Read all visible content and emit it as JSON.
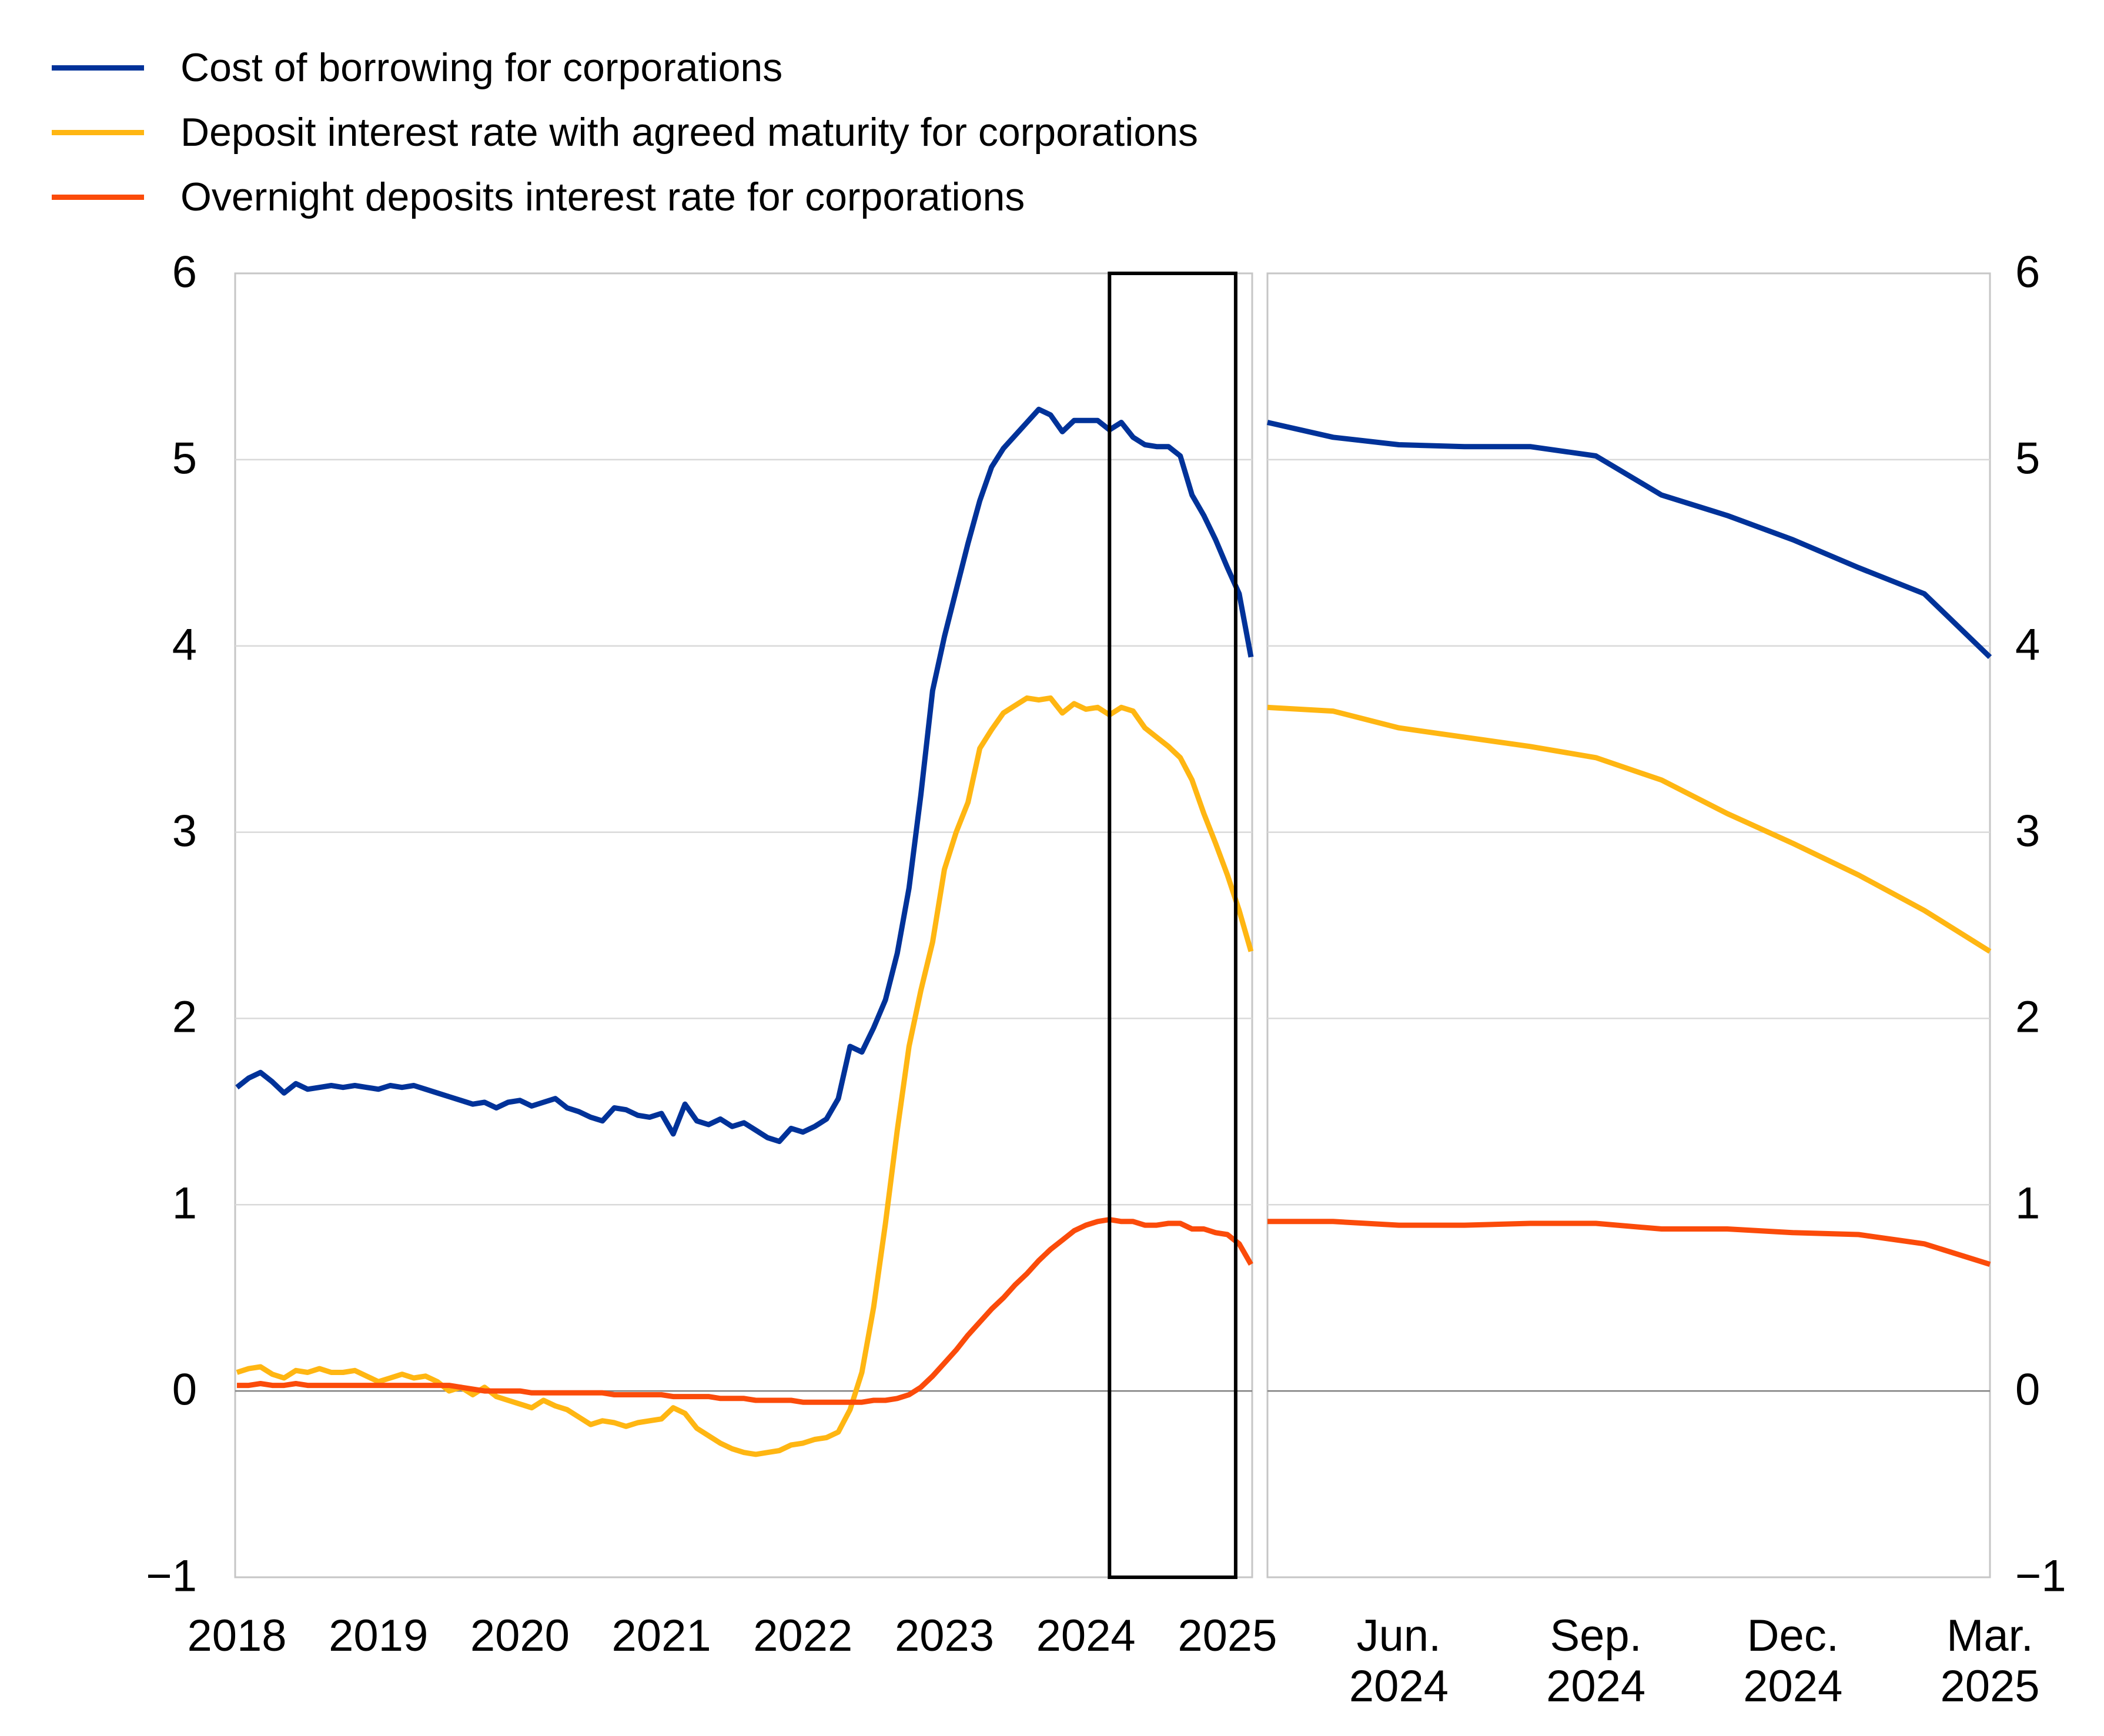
{
  "legend": {
    "items": [
      {
        "label": "Cost of borrowing for corporations",
        "color": "#003299"
      },
      {
        "label": "Deposit interest rate with agreed maturity for corporations",
        "color": "#ffb612"
      },
      {
        "label": "Overnight deposits interest rate for corporations",
        "color": "#fb4b0a"
      }
    ]
  },
  "colors": {
    "blue": "#003299",
    "yellow": "#ffb612",
    "red": "#fb4b0a",
    "gridline": "#d9d9d9",
    "zero_line": "#7f7f7f",
    "panel_border": "#c6c6c6",
    "highlight_box": "#000000"
  },
  "chart_data": {
    "type": "line",
    "unit": "percent per annum",
    "grid": "horizontal-only",
    "legend_position": "top-left",
    "y_axis": {
      "min": -1,
      "max": 6,
      "tick_values": [
        6,
        5,
        4,
        3,
        2,
        1,
        0,
        -1
      ],
      "tick_labels": [
        "6",
        "5",
        "4",
        "3",
        "2",
        "1",
        "0",
        "−1"
      ],
      "shown_on": "left-of-first-panel-and-right-of-second-panel"
    },
    "panels": [
      {
        "id": "history",
        "x_range": {
          "start": "2018-01",
          "end": "2025-03",
          "freq": "monthly"
        },
        "x_tick_labels": [
          "2018",
          "2019",
          "2020",
          "2021",
          "2022",
          "2023",
          "2024",
          "2025"
        ],
        "x_tick_month_index": [
          0,
          12,
          24,
          36,
          48,
          60,
          72,
          84
        ],
        "highlight_box": {
          "from_month_index": 74,
          "to_month_index": 84.7,
          "from": "2024-03",
          "to": "2025-01",
          "meaning": "window enlarged in right panel"
        },
        "series": [
          {
            "name": "Cost of borrowing for corporations",
            "color": "#003299",
            "values": [
              1.63,
              1.68,
              1.71,
              1.66,
              1.6,
              1.65,
              1.62,
              1.63,
              1.64,
              1.63,
              1.64,
              1.63,
              1.62,
              1.64,
              1.63,
              1.64,
              1.62,
              1.6,
              1.58,
              1.56,
              1.54,
              1.55,
              1.52,
              1.55,
              1.56,
              1.53,
              1.55,
              1.57,
              1.52,
              1.5,
              1.47,
              1.45,
              1.52,
              1.51,
              1.48,
              1.47,
              1.49,
              1.38,
              1.54,
              1.45,
              1.43,
              1.46,
              1.42,
              1.44,
              1.4,
              1.36,
              1.34,
              1.41,
              1.39,
              1.42,
              1.46,
              1.57,
              1.85,
              1.82,
              1.95,
              2.1,
              2.35,
              2.7,
              3.2,
              3.76,
              4.05,
              4.3,
              4.55,
              4.78,
              4.96,
              5.06,
              5.13,
              5.2,
              5.27,
              5.24,
              5.15,
              5.21,
              5.21,
              5.21,
              5.16,
              5.2,
              5.12,
              5.08,
              5.07,
              5.07,
              5.02,
              4.81,
              4.7,
              4.57,
              4.42,
              4.28,
              3.94
            ]
          },
          {
            "name": "Deposit interest rate with agreed maturity for corporations",
            "color": "#ffb612",
            "values": [
              0.1,
              0.12,
              0.13,
              0.09,
              0.07,
              0.11,
              0.1,
              0.12,
              0.1,
              0.1,
              0.11,
              0.08,
              0.05,
              0.07,
              0.09,
              0.07,
              0.08,
              0.05,
              0.0,
              0.02,
              -0.02,
              0.02,
              -0.03,
              -0.05,
              -0.07,
              -0.09,
              -0.05,
              -0.08,
              -0.1,
              -0.14,
              -0.18,
              -0.16,
              -0.17,
              -0.19,
              -0.17,
              -0.16,
              -0.15,
              -0.09,
              -0.12,
              -0.2,
              -0.24,
              -0.28,
              -0.31,
              -0.33,
              -0.34,
              -0.33,
              -0.32,
              -0.29,
              -0.28,
              -0.26,
              -0.25,
              -0.22,
              -0.1,
              0.1,
              0.45,
              0.9,
              1.4,
              1.85,
              2.15,
              2.41,
              2.8,
              3.0,
              3.16,
              3.45,
              3.55,
              3.64,
              3.68,
              3.72,
              3.71,
              3.72,
              3.64,
              3.69,
              3.66,
              3.67,
              3.63,
              3.67,
              3.65,
              3.56,
              3.51,
              3.46,
              3.4,
              3.28,
              3.1,
              2.94,
              2.77,
              2.58,
              2.36
            ]
          },
          {
            "name": "Overnight deposits interest rate for corporations",
            "color": "#fb4b0a",
            "values": [
              0.03,
              0.03,
              0.04,
              0.03,
              0.03,
              0.04,
              0.03,
              0.03,
              0.03,
              0.03,
              0.03,
              0.03,
              0.03,
              0.03,
              0.03,
              0.03,
              0.03,
              0.03,
              0.03,
              0.02,
              0.01,
              0.0,
              0.0,
              0.0,
              0.0,
              -0.01,
              -0.01,
              -0.01,
              -0.01,
              -0.01,
              -0.01,
              -0.01,
              -0.02,
              -0.02,
              -0.02,
              -0.02,
              -0.02,
              -0.03,
              -0.03,
              -0.03,
              -0.03,
              -0.04,
              -0.04,
              -0.04,
              -0.05,
              -0.05,
              -0.05,
              -0.05,
              -0.06,
              -0.06,
              -0.06,
              -0.06,
              -0.06,
              -0.06,
              -0.05,
              -0.05,
              -0.04,
              -0.02,
              0.02,
              0.08,
              0.15,
              0.22,
              0.3,
              0.37,
              0.44,
              0.5,
              0.57,
              0.63,
              0.7,
              0.76,
              0.81,
              0.86,
              0.89,
              0.91,
              0.92,
              0.91,
              0.91,
              0.89,
              0.89,
              0.9,
              0.9,
              0.87,
              0.87,
              0.85,
              0.84,
              0.79,
              0.68
            ]
          }
        ]
      },
      {
        "id": "recent-zoom",
        "x_range": {
          "start": "2024-04",
          "end": "2025-03",
          "freq": "monthly"
        },
        "x_tick_labels": [
          {
            "line1": "Jun.",
            "line2": "2024",
            "month_index": 2
          },
          {
            "line1": "Sep.",
            "line2": "2024",
            "month_index": 5
          },
          {
            "line1": "Dec.",
            "line2": "2024",
            "month_index": 8
          },
          {
            "line1": "Mar.",
            "line2": "2025",
            "month_index": 11
          }
        ],
        "series": [
          {
            "name": "Cost of borrowing for corporations",
            "color": "#003299",
            "values": [
              5.2,
              5.12,
              5.08,
              5.07,
              5.07,
              5.02,
              4.81,
              4.7,
              4.57,
              4.42,
              4.28,
              3.94
            ]
          },
          {
            "name": "Deposit interest rate with agreed maturity for corporations",
            "color": "#ffb612",
            "values": [
              3.67,
              3.65,
              3.56,
              3.51,
              3.46,
              3.4,
              3.28,
              3.1,
              2.94,
              2.77,
              2.58,
              2.36
            ]
          },
          {
            "name": "Overnight deposits interest rate for corporations",
            "color": "#fb4b0a",
            "values": [
              0.91,
              0.91,
              0.89,
              0.89,
              0.9,
              0.9,
              0.87,
              0.87,
              0.85,
              0.84,
              0.79,
              0.68
            ]
          }
        ]
      }
    ]
  }
}
